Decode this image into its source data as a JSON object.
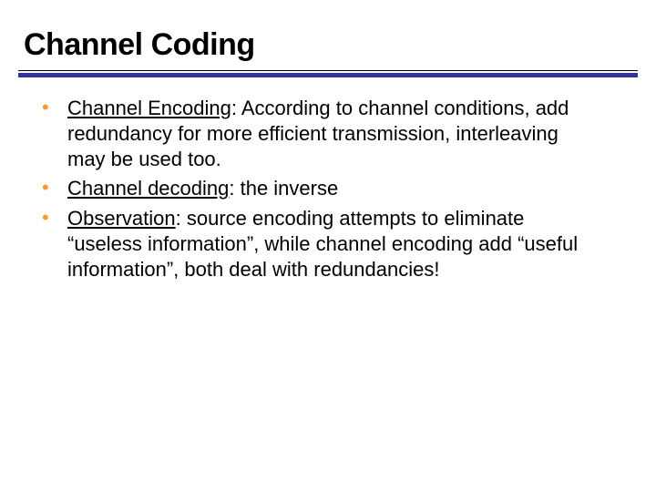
{
  "slide": {
    "title": "Channel Coding",
    "title_fontsize": 34,
    "title_color": "#000000",
    "rule_thin_color": "#000000",
    "rule_thick_color": "#333399",
    "rule_thick_height": 5,
    "bullet_color": "#ff9933",
    "body_fontsize": 22,
    "body_color": "#000000",
    "background_color": "#ffffff",
    "bullets": [
      {
        "label": "Channel Encoding",
        "text": ": According to channel conditions, add redundancy for more efficient transmission, interleaving may be used too."
      },
      {
        "label": "Channel decoding",
        "text": ": the inverse"
      },
      {
        "label": "Observation",
        "text": ": source encoding attempts to eliminate “useless information”, while channel encoding add “useful information”, both deal with redundancies!"
      }
    ]
  }
}
